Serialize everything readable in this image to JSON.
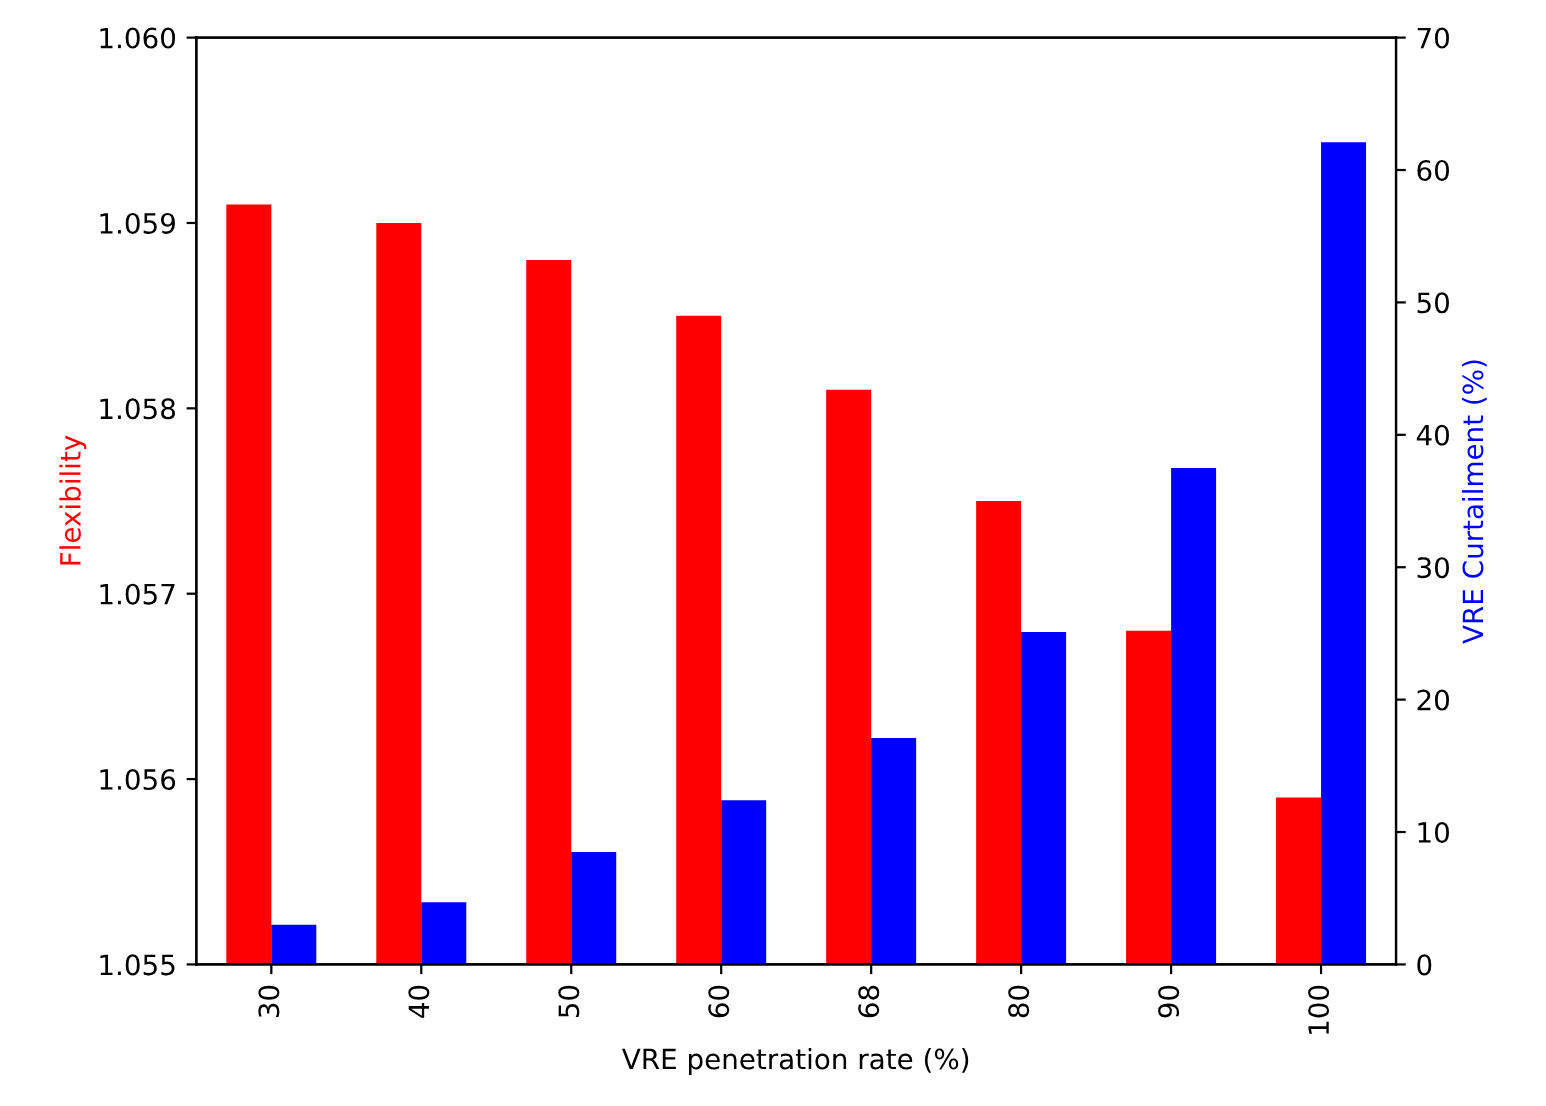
{
  "chart_data": {
    "type": "bar",
    "xlabel": "VRE penetration rate (%)",
    "ylabel": "Flexibility",
    "y2label": "VRE Curtailment (%)",
    "categories": [
      "30",
      "40",
      "50",
      "60",
      "68",
      "80",
      "90",
      "100"
    ],
    "series": [
      {
        "color": "#ff0000",
        "values": [
          1.0591,
          1.059,
          1.0588,
          1.0585,
          1.0581,
          1.0575,
          1.0568,
          1.0559
        ]
      },
      {
        "color": "#0000ff",
        "axis": "y2",
        "values": [
          3.0,
          4.7,
          8.5,
          12.4,
          17.1,
          25.1,
          37.5,
          62.1
        ]
      }
    ],
    "ylim": [
      1.055,
      1.06
    ],
    "yticks": [
      {
        "value": 1.055,
        "label": "1.055"
      },
      {
        "value": 1.056,
        "label": "1.056"
      },
      {
        "value": 1.057,
        "label": "1.057"
      },
      {
        "value": 1.058,
        "label": "1.058"
      },
      {
        "value": 1.059,
        "label": "1.059"
      },
      {
        "value": 1.06,
        "label": "1.060"
      }
    ],
    "y2lim": [
      0,
      70
    ],
    "y2ticks": [
      0,
      10,
      20,
      30,
      40,
      50,
      60,
      70
    ],
    "grid": false
  }
}
